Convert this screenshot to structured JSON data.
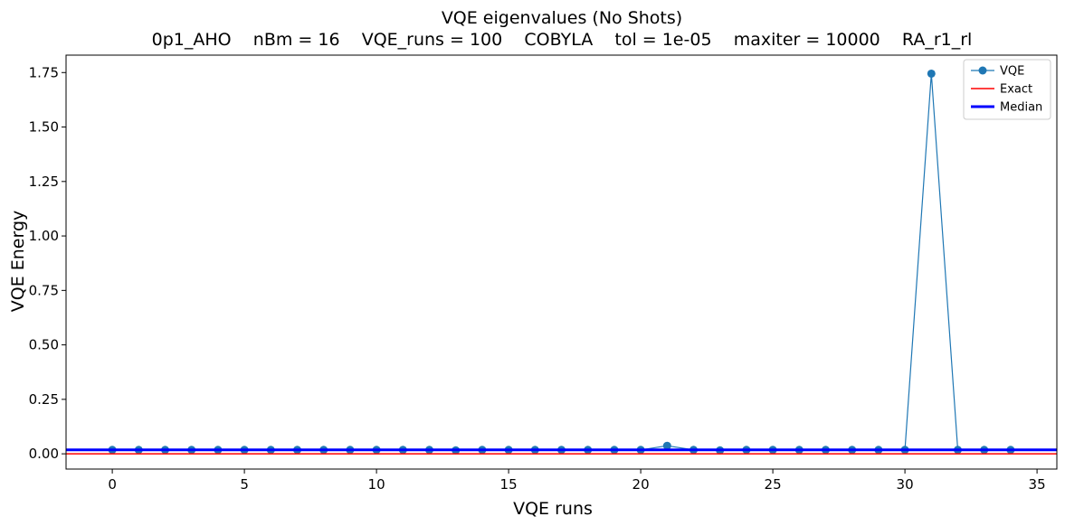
{
  "chart_data": {
    "type": "line",
    "title": "VQE eigenvalues (No Shots)",
    "subtitle": "0p1_AHO    nBm = 16    VQE_runs = 100    COBYLA    tol = 1e-05    maxiter = 10000    RA_r1_rl",
    "xlabel": "VQE runs",
    "ylabel": "VQE Energy",
    "xlim": [
      -1.75,
      35.75
    ],
    "ylim": [
      -0.07,
      1.83
    ],
    "xticks": [
      0,
      5,
      10,
      15,
      20,
      25,
      30,
      35
    ],
    "yticks": [
      0.0,
      0.25,
      0.5,
      0.75,
      1.0,
      1.25,
      1.5,
      1.75
    ],
    "ytick_labels": [
      "0.00",
      "0.25",
      "0.50",
      "0.75",
      "1.00",
      "1.25",
      "1.50",
      "1.75"
    ],
    "grid": false,
    "legend_position": "top-right",
    "series": [
      {
        "name": "VQE",
        "kind": "line-marker",
        "color": "#1f77b4",
        "x": [
          0,
          1,
          2,
          3,
          4,
          5,
          6,
          7,
          8,
          9,
          10,
          11,
          12,
          13,
          14,
          15,
          16,
          17,
          18,
          19,
          20,
          21,
          22,
          23,
          24,
          25,
          26,
          27,
          28,
          29,
          30,
          31,
          32,
          33,
          34
        ],
        "values": [
          0.018,
          0.018,
          0.018,
          0.018,
          0.018,
          0.018,
          0.018,
          0.018,
          0.018,
          0.018,
          0.018,
          0.018,
          0.018,
          0.016,
          0.018,
          0.018,
          0.018,
          0.018,
          0.018,
          0.018,
          0.018,
          0.037,
          0.018,
          0.016,
          0.018,
          0.018,
          0.018,
          0.018,
          0.018,
          0.018,
          0.018,
          1.745,
          0.018,
          0.018,
          0.018
        ]
      },
      {
        "name": "Exact",
        "kind": "hline",
        "color": "#ff0000",
        "value": 0.0
      },
      {
        "name": "Median",
        "kind": "hline",
        "color": "#0000ff",
        "value": 0.018
      }
    ]
  }
}
